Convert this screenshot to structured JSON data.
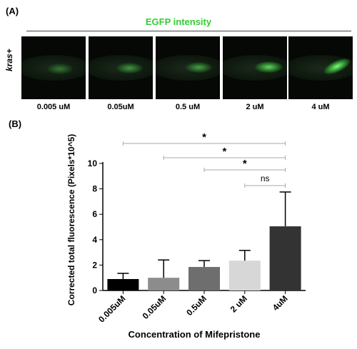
{
  "panel_a": {
    "label": "(A)",
    "title": "EGFP intensity",
    "row_label": "kras+",
    "concentrations": [
      "0.005 uM",
      "0.05uM",
      "0.5 uM",
      "2 uM",
      "4 uM"
    ],
    "glow_intensity": [
      0.35,
      0.5,
      0.55,
      0.8,
      1.0
    ],
    "colors": {
      "title": "#33cc33",
      "glow": "#5dff5d"
    }
  },
  "panel_b": {
    "label": "(B)"
  },
  "chart_data": {
    "type": "bar",
    "categories": [
      "0.005uM",
      "0.05uM",
      "0.5uM",
      "2 uM",
      "4uM"
    ],
    "values": [
      0.9,
      1.0,
      1.85,
      2.35,
      5.05
    ],
    "error_upper": [
      1.35,
      2.4,
      2.35,
      3.15,
      7.75
    ],
    "bar_colors": [
      "#000000",
      "#8c8c8c",
      "#6e6e6e",
      "#d7d7d7",
      "#333333"
    ],
    "xlabel": "Concentration of Mifepristone",
    "ylabel": "Corrected total fluorescence (Pixels*10^5)",
    "ylim": [
      0,
      10
    ],
    "yticks": [
      "0",
      "2",
      "4",
      "6",
      "8",
      "10"
    ],
    "grid": false,
    "significance": [
      {
        "from": 0,
        "to": 4,
        "label": "*"
      },
      {
        "from": 1,
        "to": 4,
        "label": "*"
      },
      {
        "from": 2,
        "to": 4,
        "label": "*"
      },
      {
        "from": 3,
        "to": 4,
        "label": "ns"
      }
    ]
  }
}
